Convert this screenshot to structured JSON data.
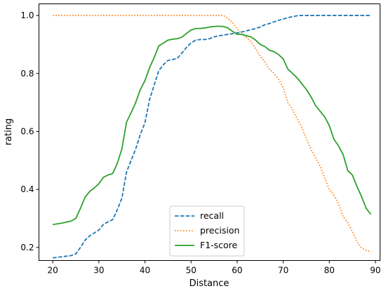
{
  "chart_data": {
    "type": "line",
    "xlabel": "Distance",
    "ylabel": "rating",
    "xlim": [
      17,
      91
    ],
    "ylim": [
      0.155,
      1.04
    ],
    "xticks": [
      20,
      30,
      40,
      50,
      60,
      70,
      80,
      90
    ],
    "yticks": [
      0.2,
      0.4,
      0.6,
      0.8,
      1.0
    ],
    "xtick_labels": [
      "20",
      "30",
      "40",
      "50",
      "60",
      "70",
      "80",
      "90"
    ],
    "ytick_labels": [
      "0.2",
      "0.4",
      "0.6",
      "0.8",
      "1.0"
    ],
    "grid": false,
    "legend_position": "bottom-center",
    "series": [
      {
        "name": "recall",
        "color": "#1f77b4",
        "style": "dashed",
        "x": [
          20,
          22,
          24,
          25,
          26,
          27,
          28,
          30,
          31,
          33,
          34,
          35,
          36,
          37,
          38,
          39,
          40,
          41,
          42,
          43,
          44,
          45,
          46,
          47,
          48,
          49,
          50,
          51,
          52,
          53,
          54,
          55,
          56,
          57,
          58,
          59,
          60,
          61,
          62,
          63,
          64,
          65,
          66,
          67,
          68,
          69,
          70,
          71,
          72,
          73,
          74,
          75,
          76,
          77,
          78,
          79,
          80,
          81,
          82,
          83,
          84,
          85,
          86,
          87,
          88,
          89
        ],
        "y": [
          0.164,
          0.168,
          0.172,
          0.178,
          0.2,
          0.225,
          0.24,
          0.26,
          0.28,
          0.296,
          0.33,
          0.37,
          0.46,
          0.5,
          0.54,
          0.59,
          0.63,
          0.71,
          0.76,
          0.81,
          0.83,
          0.845,
          0.848,
          0.852,
          0.87,
          0.89,
          0.905,
          0.915,
          0.917,
          0.917,
          0.92,
          0.926,
          0.93,
          0.932,
          0.935,
          0.937,
          0.94,
          0.943,
          0.947,
          0.951,
          0.955,
          0.96,
          0.968,
          0.972,
          0.978,
          0.983,
          0.988,
          0.992,
          0.996,
          0.999,
          1.0,
          1.0,
          1.0,
          1.0,
          1.0,
          1.0,
          1.0,
          1.0,
          1.0,
          1.0,
          1.0,
          1.0,
          1.0,
          1.0,
          1.0,
          1.0
        ]
      },
      {
        "name": "precision",
        "color": "#ff7f0e",
        "style": "dotted",
        "x": [
          20,
          30,
          40,
          50,
          55,
          57,
          58,
          59,
          60,
          61,
          62,
          63,
          64,
          65,
          66,
          67,
          68,
          69,
          70,
          71,
          72,
          73,
          74,
          75,
          76,
          77,
          78,
          79,
          80,
          81,
          82,
          83,
          84,
          85,
          86,
          87,
          88,
          89
        ],
        "y": [
          1.0,
          1.0,
          1.0,
          1.0,
          1.0,
          1.0,
          0.99,
          0.975,
          0.955,
          0.935,
          0.925,
          0.91,
          0.885,
          0.86,
          0.84,
          0.815,
          0.8,
          0.78,
          0.75,
          0.7,
          0.675,
          0.645,
          0.615,
          0.575,
          0.54,
          0.51,
          0.48,
          0.44,
          0.4,
          0.38,
          0.35,
          0.305,
          0.285,
          0.255,
          0.22,
          0.198,
          0.19,
          0.186
        ]
      },
      {
        "name": "F1-score",
        "color": "#2ca02c",
        "style": "solid",
        "x": [
          20,
          22,
          24,
          25,
          26,
          27,
          28,
          29,
          30,
          31,
          32,
          33,
          34,
          35,
          36,
          37,
          38,
          39,
          40,
          41,
          42,
          43,
          44,
          45,
          46,
          47,
          48,
          49,
          50,
          51,
          52,
          53,
          54,
          55,
          56,
          57,
          58,
          59,
          60,
          61,
          62,
          63,
          64,
          65,
          66,
          67,
          68,
          69,
          70,
          71,
          72,
          73,
          74,
          75,
          76,
          77,
          78,
          79,
          80,
          81,
          82,
          83,
          84,
          85,
          86,
          87,
          88,
          89
        ],
        "y": [
          0.279,
          0.284,
          0.291,
          0.3,
          0.335,
          0.373,
          0.393,
          0.405,
          0.42,
          0.442,
          0.45,
          0.455,
          0.49,
          0.54,
          0.632,
          0.665,
          0.7,
          0.745,
          0.775,
          0.82,
          0.855,
          0.895,
          0.905,
          0.915,
          0.918,
          0.92,
          0.925,
          0.938,
          0.95,
          0.955,
          0.955,
          0.957,
          0.96,
          0.962,
          0.963,
          0.962,
          0.957,
          0.945,
          0.935,
          0.935,
          0.93,
          0.926,
          0.915,
          0.9,
          0.893,
          0.88,
          0.875,
          0.865,
          0.85,
          0.815,
          0.8,
          0.785,
          0.765,
          0.745,
          0.72,
          0.69,
          0.67,
          0.65,
          0.62,
          0.573,
          0.55,
          0.52,
          0.465,
          0.45,
          0.41,
          0.375,
          0.335,
          0.314
        ]
      }
    ]
  }
}
